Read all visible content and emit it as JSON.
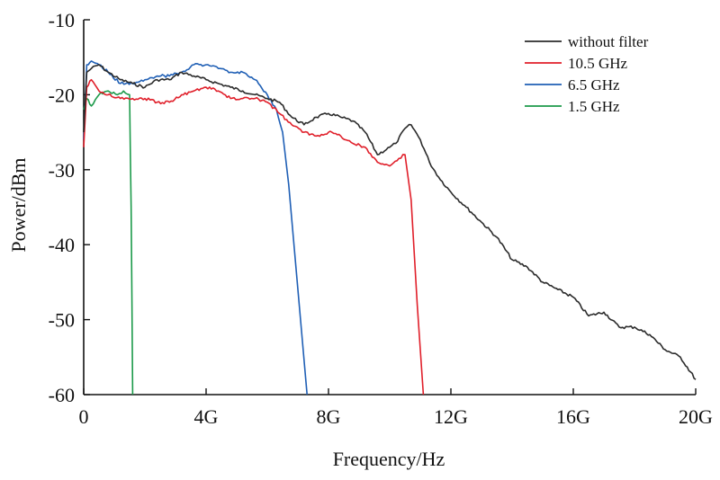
{
  "chart_data": {
    "type": "line",
    "xlabel": "Frequency/Hz",
    "ylabel": "Power/dBm",
    "xlim": [
      0,
      20
    ],
    "ylim": [
      -60,
      -10
    ],
    "x_ticks": [
      {
        "value": 0,
        "label": "0"
      },
      {
        "value": 4,
        "label": "4G"
      },
      {
        "value": 8,
        "label": "8G"
      },
      {
        "value": 12,
        "label": "12G"
      },
      {
        "value": 16,
        "label": "16G"
      },
      {
        "value": 20,
        "label": "20G"
      }
    ],
    "y_ticks": [
      {
        "value": -10,
        "label": "-10"
      },
      {
        "value": -20,
        "label": "-20"
      },
      {
        "value": -30,
        "label": "-30"
      },
      {
        "value": -40,
        "label": "-40"
      },
      {
        "value": -50,
        "label": "-50"
      },
      {
        "value": -60,
        "label": "-60"
      }
    ],
    "legend_position": "top-right",
    "grid": false,
    "series": [
      {
        "name": "without filter",
        "color": "#2b2b2b",
        "x": [
          0,
          0.1,
          0.25,
          0.5,
          0.8,
          1.2,
          1.6,
          2.0,
          2.4,
          2.8,
          3.2,
          3.6,
          4.0,
          4.4,
          4.8,
          5.2,
          5.6,
          6.0,
          6.4,
          6.8,
          7.2,
          7.6,
          8.0,
          8.4,
          8.8,
          9.2,
          9.6,
          10.0,
          10.2,
          10.5,
          10.7,
          11.0,
          11.3,
          11.6,
          12.0,
          12.5,
          13.0,
          13.5,
          14.0,
          14.5,
          15.0,
          15.5,
          16.0,
          16.5,
          17.0,
          17.5,
          18.0,
          18.5,
          19.0,
          19.5,
          20.0
        ],
        "y": [
          -25,
          -17,
          -16.5,
          -16,
          -17,
          -18,
          -18.5,
          -19,
          -18,
          -18,
          -17,
          -17.5,
          -18,
          -18.5,
          -19,
          -19.5,
          -20,
          -20.5,
          -21,
          -23,
          -24,
          -23,
          -22.5,
          -23,
          -23.5,
          -25,
          -28,
          -27,
          -26.5,
          -24.5,
          -24,
          -26,
          -29,
          -31,
          -33,
          -35,
          -37,
          -39,
          -42,
          -43,
          -45,
          -46,
          -47,
          -49.5,
          -49,
          -51,
          -51,
          -52,
          -54,
          -55,
          -58
        ]
      },
      {
        "name": "10.5 GHz",
        "color": "#e01f2a",
        "x": [
          0,
          0.1,
          0.25,
          0.5,
          0.8,
          1.2,
          1.6,
          2.0,
          2.4,
          2.8,
          3.2,
          3.6,
          4.0,
          4.4,
          4.8,
          5.2,
          5.6,
          6.0,
          6.4,
          6.8,
          7.2,
          7.6,
          8.0,
          8.4,
          8.8,
          9.2,
          9.6,
          10.0,
          10.3,
          10.5,
          10.7,
          10.9,
          11.1
        ],
        "y": [
          -27,
          -19,
          -18,
          -19.5,
          -20,
          -20.5,
          -20.5,
          -20.5,
          -21,
          -21,
          -20,
          -19.5,
          -19,
          -19.5,
          -20.5,
          -20.5,
          -20.5,
          -21,
          -22.5,
          -24,
          -25,
          -25.5,
          -25,
          -25.5,
          -26.5,
          -27,
          -29,
          -29.5,
          -28.5,
          -28,
          -34,
          -48,
          -60
        ]
      },
      {
        "name": "6.5 GHz",
        "color": "#1f5fb5",
        "x": [
          0,
          0.1,
          0.25,
          0.5,
          0.8,
          1.2,
          1.6,
          2.0,
          2.4,
          2.8,
          3.2,
          3.6,
          4.0,
          4.4,
          4.8,
          5.2,
          5.6,
          6.0,
          6.3,
          6.5,
          6.7,
          7.0,
          7.3
        ],
        "y": [
          -26,
          -16,
          -15.5,
          -16,
          -17,
          -18.5,
          -18.5,
          -18,
          -17.5,
          -17.5,
          -17,
          -16,
          -16,
          -16.5,
          -17,
          -17,
          -18,
          -20,
          -22,
          -25,
          -32,
          -46,
          -60
        ]
      },
      {
        "name": "1.5 GHz",
        "color": "#1c9a4a",
        "x": [
          0,
          0.1,
          0.25,
          0.5,
          0.8,
          1.1,
          1.3,
          1.5,
          1.55,
          1.6
        ],
        "y": [
          -22,
          -20.5,
          -21.5,
          -20,
          -19.5,
          -20,
          -19.5,
          -20,
          -35,
          -60
        ]
      }
    ]
  }
}
